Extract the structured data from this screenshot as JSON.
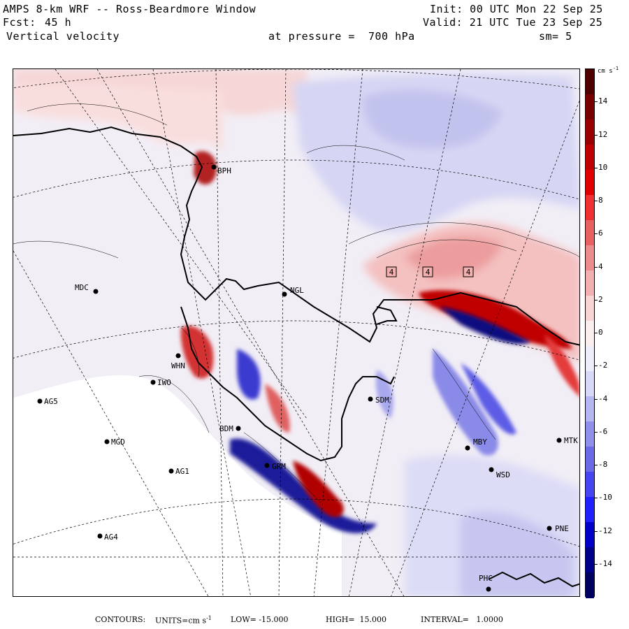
{
  "header": {
    "title": "AMPS 8-km WRF -- Ross-Beardmore Window",
    "forecast_label": "Fcst:",
    "forecast_value": "45 h",
    "field": "Vertical velocity",
    "init": "Init: 00 UTC Mon 22 Sep 25",
    "valid": "Valid: 21 UTC Tue 23 Sep 25",
    "pressure": "at pressure =  700 hPa",
    "smoothing": "sm= 5"
  },
  "colorbar": {
    "units": "cm s",
    "units_exp": "-1",
    "ticks": [
      "14",
      "12",
      "10",
      "8",
      "6",
      "4",
      "2",
      "0",
      "-2",
      "-4",
      "-6",
      "-8",
      "-10",
      "-12",
      "-14"
    ],
    "range": [
      -16,
      16
    ],
    "colors": [
      "#00005e",
      "#00008a",
      "#0000c8",
      "#2020ff",
      "#4646f0",
      "#6a6ae6",
      "#9090ea",
      "#b6b6f2",
      "#d8d8f8",
      "#eeeefa",
      "#fbeeee",
      "#f8d4d4",
      "#f2b0b0",
      "#ec8c8c",
      "#e86060",
      "#f03030",
      "#e00000",
      "#c00000",
      "#9a0000",
      "#760000",
      "#4e0000"
    ]
  },
  "stations": [
    {
      "label": "BPH"
    },
    {
      "label": "NGL"
    },
    {
      "label": "MDC"
    },
    {
      "label": "WHN"
    },
    {
      "label": "IWO"
    },
    {
      "label": "AG5"
    },
    {
      "label": "MGD"
    },
    {
      "label": "AG1"
    },
    {
      "label": "AG4"
    },
    {
      "label": "SDM"
    },
    {
      "label": "BDM"
    },
    {
      "label": "GRM"
    },
    {
      "label": "MBY"
    },
    {
      "label": "MTK"
    },
    {
      "label": "WSD"
    },
    {
      "label": "PNE"
    },
    {
      "label": "PHC"
    }
  ],
  "contour_labels": [
    "4",
    "4",
    "4"
  ],
  "footer": {
    "contours": "CONTOURS:",
    "units_label": "UNITS=cm s",
    "units_exp": "-1",
    "low": "LOW= -15.000",
    "high": "HIGH=  15.000",
    "interval": "INTERVAL=   1.0000"
  }
}
